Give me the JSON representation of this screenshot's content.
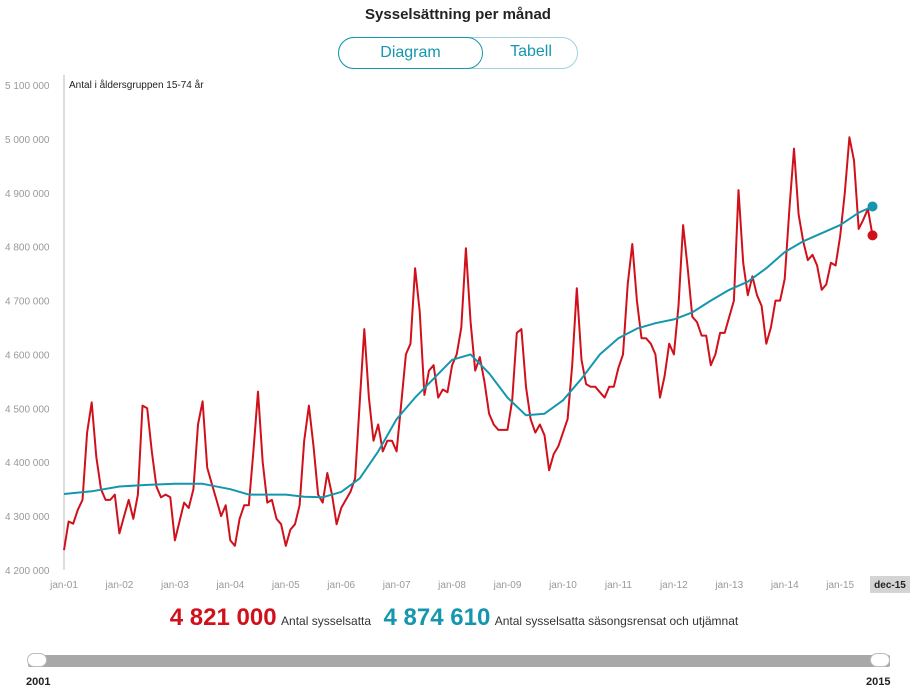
{
  "title": "Sysselsättning per månad",
  "toggle": {
    "diagram": "Diagram",
    "tabell": "Tabell",
    "active": "Diagram"
  },
  "colors": {
    "raw": "#d0111b",
    "trend": "#1497ad",
    "axis": "#999999",
    "slider": "#a8a8a8"
  },
  "chart_data": {
    "type": "line",
    "title": "Sysselsättning per månad",
    "ylabel": "Antal i åldersgruppen 15-74 år",
    "xlabel": "",
    "ylim": [
      4200000,
      5100000
    ],
    "yticks": [
      4200000,
      4300000,
      4400000,
      4500000,
      4600000,
      4700000,
      4800000,
      4900000,
      5000000,
      5100000
    ],
    "ytick_labels": [
      "4 200 000",
      "4 300 000",
      "4 400 000",
      "4 500 000",
      "4 600 000",
      "4 700 000",
      "4 800 000",
      "4 900 000",
      "5 000 000",
      "5 100 000"
    ],
    "xtick_labels": [
      "jan-01",
      "jan-02",
      "jan-03",
      "jan-04",
      "jan-05",
      "jan-06",
      "jan-07",
      "jan-08",
      "jan-09",
      "jan-10",
      "jan-11",
      "jan-12",
      "jan-13",
      "jan-14",
      "jan-15"
    ],
    "x_end_label": "dec-15",
    "start_year": 2001,
    "months": 180,
    "series": [
      {
        "name": "Antal sysselsatta",
        "color": "#d0111b",
        "anchors": [
          [
            0,
            4237000
          ],
          [
            1,
            4290000
          ],
          [
            2,
            4286000
          ],
          [
            3,
            4312000
          ],
          [
            4,
            4330000
          ],
          [
            5,
            4455000
          ],
          [
            6,
            4511000
          ],
          [
            7,
            4410000
          ],
          [
            8,
            4350000
          ],
          [
            9,
            4330000
          ],
          [
            10,
            4330000
          ],
          [
            11,
            4340000
          ],
          [
            12,
            4268000
          ],
          [
            13,
            4300000
          ],
          [
            14,
            4330000
          ],
          [
            15,
            4295000
          ],
          [
            16,
            4340000
          ],
          [
            17,
            4505000
          ],
          [
            18,
            4500000
          ],
          [
            19,
            4420000
          ],
          [
            20,
            4355000
          ],
          [
            21,
            4335000
          ],
          [
            22,
            4340000
          ],
          [
            23,
            4335000
          ],
          [
            24,
            4255000
          ],
          [
            25,
            4290000
          ],
          [
            26,
            4325000
          ],
          [
            27,
            4315000
          ],
          [
            28,
            4350000
          ],
          [
            29,
            4470000
          ],
          [
            30,
            4513000
          ],
          [
            31,
            4390000
          ],
          [
            32,
            4360000
          ],
          [
            33,
            4330000
          ],
          [
            34,
            4300000
          ],
          [
            35,
            4320000
          ],
          [
            36,
            4255000
          ],
          [
            37,
            4245000
          ],
          [
            38,
            4295000
          ],
          [
            39,
            4320000
          ],
          [
            40,
            4320000
          ],
          [
            41,
            4420000
          ],
          [
            42,
            4531000
          ],
          [
            43,
            4400000
          ],
          [
            44,
            4325000
          ],
          [
            45,
            4330000
          ],
          [
            46,
            4295000
          ],
          [
            47,
            4285000
          ],
          [
            48,
            4245000
          ],
          [
            49,
            4275000
          ],
          [
            50,
            4285000
          ],
          [
            51,
            4320000
          ],
          [
            52,
            4440000
          ],
          [
            53,
            4505000
          ],
          [
            54,
            4430000
          ],
          [
            55,
            4340000
          ],
          [
            56,
            4325000
          ],
          [
            57,
            4380000
          ],
          [
            58,
            4340000
          ],
          [
            59,
            4285000
          ],
          [
            60,
            4315000
          ],
          [
            61,
            4330000
          ],
          [
            62,
            4345000
          ],
          [
            63,
            4370000
          ],
          [
            64,
            4510000
          ],
          [
            65,
            4647000
          ],
          [
            66,
            4520000
          ],
          [
            67,
            4440000
          ],
          [
            68,
            4470000
          ],
          [
            69,
            4420000
          ],
          [
            70,
            4440000
          ],
          [
            71,
            4440000
          ],
          [
            72,
            4420000
          ],
          [
            73,
            4510000
          ],
          [
            74,
            4600000
          ],
          [
            75,
            4620000
          ],
          [
            76,
            4760000
          ],
          [
            77,
            4680000
          ],
          [
            78,
            4525000
          ],
          [
            79,
            4570000
          ],
          [
            80,
            4580000
          ],
          [
            81,
            4520000
          ],
          [
            82,
            4535000
          ],
          [
            83,
            4530000
          ],
          [
            84,
            4580000
          ],
          [
            85,
            4600000
          ],
          [
            86,
            4650000
          ],
          [
            87,
            4797000
          ],
          [
            88,
            4660000
          ],
          [
            89,
            4570000
          ],
          [
            90,
            4595000
          ],
          [
            91,
            4550000
          ],
          [
            92,
            4490000
          ],
          [
            93,
            4470000
          ],
          [
            94,
            4460000
          ],
          [
            95,
            4460000
          ],
          [
            96,
            4460000
          ],
          [
            97,
            4515000
          ],
          [
            98,
            4640000
          ],
          [
            99,
            4647000
          ],
          [
            100,
            4540000
          ],
          [
            101,
            4480000
          ],
          [
            102,
            4455000
          ],
          [
            103,
            4470000
          ],
          [
            104,
            4450000
          ],
          [
            105,
            4385000
          ],
          [
            106,
            4415000
          ],
          [
            107,
            4430000
          ],
          [
            108,
            4455000
          ],
          [
            109,
            4480000
          ],
          [
            110,
            4580000
          ],
          [
            111,
            4723000
          ],
          [
            112,
            4590000
          ],
          [
            113,
            4545000
          ],
          [
            114,
            4540000
          ],
          [
            115,
            4540000
          ],
          [
            116,
            4530000
          ],
          [
            117,
            4520000
          ],
          [
            118,
            4540000
          ],
          [
            119,
            4540000
          ],
          [
            120,
            4575000
          ],
          [
            121,
            4600000
          ],
          [
            122,
            4730000
          ],
          [
            123,
            4805000
          ],
          [
            124,
            4700000
          ],
          [
            125,
            4630000
          ],
          [
            126,
            4630000
          ],
          [
            127,
            4620000
          ],
          [
            128,
            4600000
          ],
          [
            129,
            4520000
          ],
          [
            130,
            4560000
          ],
          [
            131,
            4620000
          ],
          [
            132,
            4600000
          ],
          [
            133,
            4690000
          ],
          [
            134,
            4840000
          ],
          [
            135,
            4760000
          ],
          [
            136,
            4670000
          ],
          [
            137,
            4660000
          ],
          [
            138,
            4635000
          ],
          [
            139,
            4635000
          ],
          [
            140,
            4580000
          ],
          [
            141,
            4600000
          ],
          [
            142,
            4640000
          ],
          [
            143,
            4640000
          ],
          [
            144,
            4670000
          ],
          [
            145,
            4700000
          ],
          [
            146,
            4905000
          ],
          [
            147,
            4770000
          ],
          [
            148,
            4710000
          ],
          [
            149,
            4745000
          ],
          [
            150,
            4710000
          ],
          [
            151,
            4690000
          ],
          [
            152,
            4620000
          ],
          [
            153,
            4650000
          ],
          [
            154,
            4700000
          ],
          [
            155,
            4700000
          ],
          [
            156,
            4740000
          ],
          [
            157,
            4870000
          ],
          [
            158,
            4982000
          ],
          [
            159,
            4860000
          ],
          [
            160,
            4810000
          ],
          [
            161,
            4775000
          ],
          [
            162,
            4785000
          ],
          [
            163,
            4765000
          ],
          [
            164,
            4720000
          ],
          [
            165,
            4730000
          ],
          [
            166,
            4770000
          ],
          [
            167,
            4765000
          ],
          [
            168,
            4820000
          ],
          [
            169,
            4900000
          ],
          [
            170,
            5003000
          ],
          [
            171,
            4960000
          ],
          [
            172,
            4833000
          ],
          [
            173,
            4850000
          ],
          [
            174,
            4870000
          ],
          [
            175,
            4821000
          ]
        ]
      },
      {
        "name": "Antal sysselsatta säsongsrensat och utjämnat",
        "color": "#1497ad",
        "anchors": [
          [
            0,
            4341000
          ],
          [
            6,
            4346000
          ],
          [
            12,
            4355000
          ],
          [
            18,
            4358000
          ],
          [
            24,
            4360000
          ],
          [
            30,
            4360000
          ],
          [
            36,
            4350000
          ],
          [
            40,
            4340000
          ],
          [
            48,
            4340000
          ],
          [
            52,
            4336000
          ],
          [
            56,
            4335000
          ],
          [
            60,
            4345000
          ],
          [
            64,
            4370000
          ],
          [
            68,
            4420000
          ],
          [
            72,
            4480000
          ],
          [
            76,
            4520000
          ],
          [
            80,
            4555000
          ],
          [
            84,
            4590000
          ],
          [
            88,
            4600000
          ],
          [
            92,
            4565000
          ],
          [
            96,
            4520000
          ],
          [
            100,
            4487000
          ],
          [
            104,
            4490000
          ],
          [
            108,
            4515000
          ],
          [
            112,
            4555000
          ],
          [
            116,
            4600000
          ],
          [
            120,
            4630000
          ],
          [
            124,
            4648000
          ],
          [
            128,
            4658000
          ],
          [
            132,
            4665000
          ],
          [
            136,
            4678000
          ],
          [
            140,
            4700000
          ],
          [
            144,
            4720000
          ],
          [
            148,
            4735000
          ],
          [
            152,
            4760000
          ],
          [
            156,
            4790000
          ],
          [
            160,
            4810000
          ],
          [
            164,
            4825000
          ],
          [
            168,
            4840000
          ],
          [
            172,
            4863000
          ],
          [
            175,
            4874610
          ]
        ]
      }
    ],
    "endpoints": [
      {
        "name": "Antal sysselsatta",
        "value": 4821000
      },
      {
        "name": "Antal sysselsatta säsongsrensat och utjämnat",
        "value": 4874610
      }
    ]
  },
  "legend": {
    "raw_value": "4 821 000",
    "raw_label": "Antal sysselsatta",
    "trend_value": "4 874 610",
    "trend_label": "Antal sysselsatta säsongsrensat och utjämnat"
  },
  "slider": {
    "start_label": "2001",
    "end_label": "2015"
  }
}
